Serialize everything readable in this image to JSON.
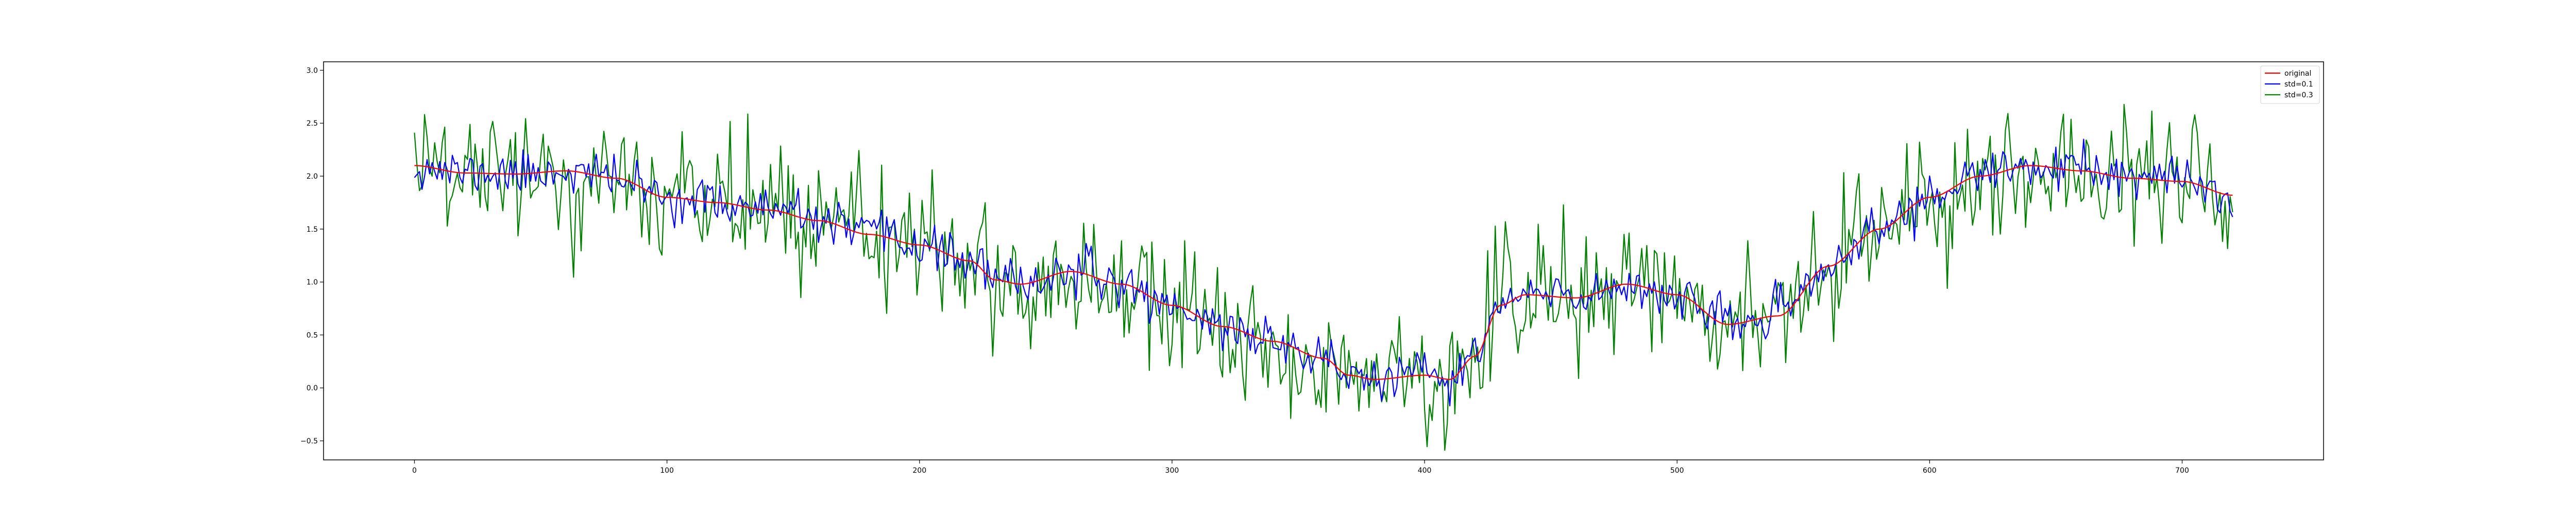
{
  "chart_data": {
    "type": "line",
    "title": "",
    "xlabel": "",
    "ylabel": "",
    "xlim": [
      -36,
      756
    ],
    "ylim": [
      -0.68,
      3.08
    ],
    "xticks": [
      0,
      100,
      200,
      300,
      400,
      500,
      600,
      700
    ],
    "yticks": [
      -0.5,
      0.0,
      0.5,
      1.0,
      1.5,
      2.0,
      2.5,
      3.0
    ],
    "ytick_labels": [
      "−0.5",
      "0.0",
      "0.5",
      "1.0",
      "1.5",
      "2.0",
      "2.5",
      "3.0"
    ],
    "grid": false,
    "legend_position": "top-right",
    "n_points": 721,
    "base_curve": {
      "x": [
        0,
        20,
        40,
        60,
        80,
        100,
        120,
        140,
        160,
        180,
        200,
        220,
        230,
        240,
        260,
        280,
        300,
        320,
        340,
        360,
        370,
        380,
        400,
        410,
        420,
        430,
        440,
        460,
        480,
        500,
        520,
        540,
        560,
        580,
        600,
        620,
        640,
        660,
        680,
        700,
        720
      ],
      "y": [
        2.1,
        2.03,
        2.02,
        2.05,
        1.98,
        1.8,
        1.75,
        1.68,
        1.58,
        1.45,
        1.35,
        1.2,
        1.02,
        0.98,
        1.1,
        0.98,
        0.78,
        0.58,
        0.44,
        0.28,
        0.12,
        0.08,
        0.12,
        0.08,
        0.3,
        0.78,
        0.88,
        0.85,
        0.98,
        0.88,
        0.6,
        0.68,
        1.15,
        1.5,
        1.8,
        2.0,
        2.1,
        2.05,
        1.98,
        1.95,
        1.82
      ]
    },
    "series": [
      {
        "name": "original",
        "color": "#ff0000",
        "noise_std": 0.0,
        "seed": 0
      },
      {
        "name": "std=0.1",
        "color": "#0000ff",
        "noise_std": 0.1,
        "seed": 11
      },
      {
        "name": "std=0.3",
        "color": "#008000",
        "noise_std": 0.3,
        "seed": 29
      }
    ]
  }
}
